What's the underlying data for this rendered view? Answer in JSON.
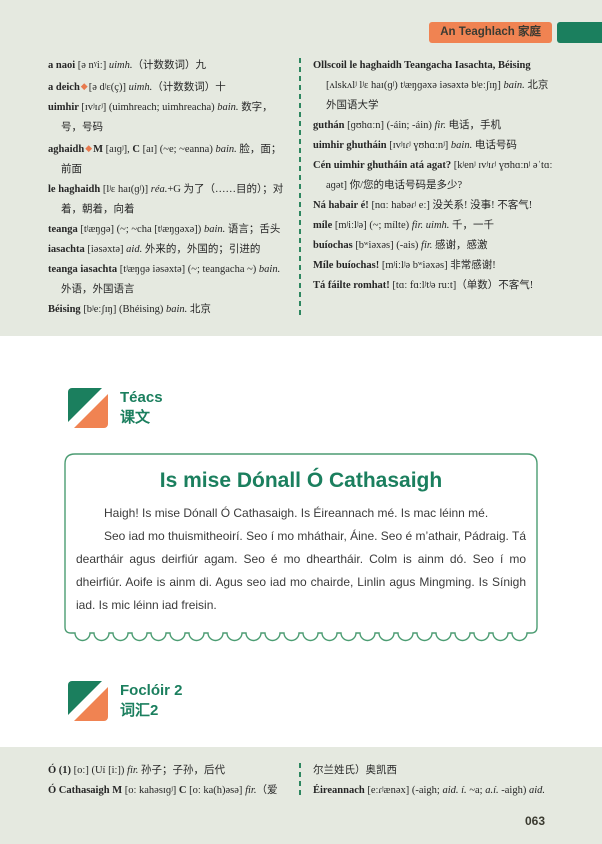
{
  "header": {
    "chapter_label": "An Teaghlach 家庭"
  },
  "colors": {
    "green": "#1b7f5e",
    "orange": "#f08352",
    "bg": "#e5e9e0",
    "boxborder": "#4b9c72",
    "diamond": "#e87a4e"
  },
  "sections": {
    "teacs": {
      "title_ga": "Téacs",
      "title_zh": "课文"
    },
    "focloir2": {
      "title_ga": "Foclóir 2",
      "title_zh": "词汇2"
    }
  },
  "textbox": {
    "title": "Is mise Dónall Ó Cathasaigh",
    "paragraphs": [
      "Haigh! Is mise Dónall Ó Cathasaigh. Is Éireannach mé. Is mac léinn mé.",
      "Seo iad mo thuismitheoirí. Seo í mo mháthair, Áine. Seo é m’athair, Pádraig. Tá deartháir agus deirfiúr agam. Seo é mo dheartháir. Colm is ainm dó. Seo í mo dheirfiúr. Aoife is ainm di. Agus seo iad mo chairde, Linlin agus Mingming. Is Sínigh iad. Is mic léinn iad freisin."
    ]
  },
  "vocab_top": {
    "left": [
      [
        {
          "t": "a naoi ",
          "s": "b"
        },
        {
          "t": "[ə nˠiː] ",
          "s": "n"
        },
        {
          "t": "uimh.",
          "s": "i"
        },
        {
          "t": "（计数数词）九",
          "s": "n"
        }
      ],
      [
        {
          "t": "a deich",
          "s": "b"
        },
        {
          "t": "◆",
          "s": "d"
        },
        {
          "t": "[ə dʲɛ(ç)] ",
          "s": "n"
        },
        {
          "t": "uimh.",
          "s": "i"
        },
        {
          "t": "（计数数词）十",
          "s": "n"
        }
      ],
      [
        {
          "t": "uimhir ",
          "s": "b"
        },
        {
          "t": "[ɪvʲɪɾʲ] (uimhreach; uimhreacha) ",
          "s": "n"
        },
        {
          "t": "bain.",
          "s": "i"
        },
        {
          "t": " 数字，号，号码",
          "s": "n"
        }
      ],
      [
        {
          "t": "aghaidh",
          "s": "b"
        },
        {
          "t": "◆",
          "s": "d"
        },
        {
          "t": "M",
          "s": "b"
        },
        {
          "t": " [aɪɡʲ], ",
          "s": "n"
        },
        {
          "t": "C",
          "s": "b"
        },
        {
          "t": " [aɪ] (~e; ~eanna) ",
          "s": "n"
        },
        {
          "t": "bain.",
          "s": "i"
        },
        {
          "t": " 脸，面；前面",
          "s": "n"
        }
      ],
      [
        {
          "t": "le haghaidh ",
          "s": "b"
        },
        {
          "t": "[lʲɛ haɪ(ɡʲ)] ",
          "s": "n"
        },
        {
          "t": "réa.",
          "s": "i"
        },
        {
          "t": "+G 为了（……目的）；对着，朝着，向着",
          "s": "n"
        }
      ],
      [
        {
          "t": "teanga ",
          "s": "b"
        },
        {
          "t": "[tʲæŋɡə] (~; ~cha [tʲæŋɡəxə]) ",
          "s": "n"
        },
        {
          "t": "bain.",
          "s": "i"
        },
        {
          "t": " 语言；舌头",
          "s": "n"
        }
      ],
      [
        {
          "t": "iasachta ",
          "s": "b"
        },
        {
          "t": "[iəsəxtə] ",
          "s": "n"
        },
        {
          "t": "aid.",
          "s": "i"
        },
        {
          "t": " 外来的，外国的；引进的",
          "s": "n"
        }
      ],
      [
        {
          "t": "teanga iasachta ",
          "s": "b"
        },
        {
          "t": "[tʲæŋɡə iəsəxtə] (~; teangacha ~) ",
          "s": "n"
        },
        {
          "t": "bain.",
          "s": "i"
        },
        {
          "t": " 外语，外国语言",
          "s": "n"
        }
      ],
      [
        {
          "t": "Béising ",
          "s": "b"
        },
        {
          "t": "[bʲeːʃɪŋ] (Bhéising) ",
          "s": "n"
        },
        {
          "t": "bain.",
          "s": "i"
        },
        {
          "t": " 北京",
          "s": "n"
        }
      ]
    ],
    "right": [
      [
        {
          "t": "Ollscoil le haghaidh Teangacha Iasachta, Béising ",
          "s": "b"
        },
        {
          "t": "[ʌlskʌlʲ lʲɛ haɪ(ɡʲ) tʲæŋɡəxə iəsəxtə bʲeːʃɪŋ] ",
          "s": "n"
        },
        {
          "t": "bain.",
          "s": "i"
        },
        {
          "t": " 北京外国语大学",
          "s": "n"
        }
      ],
      [
        {
          "t": "guthán ",
          "s": "b"
        },
        {
          "t": "[ɡʊhɑːn] (-áin; -áin) ",
          "s": "n"
        },
        {
          "t": "fir.",
          "s": "i"
        },
        {
          "t": " 电话，手机",
          "s": "n"
        }
      ],
      [
        {
          "t": "uimhir ghutháin ",
          "s": "b"
        },
        {
          "t": "[ɪvʲɪɾʲ ɣʊhɑːnʲ] ",
          "s": "n"
        },
        {
          "t": "bain.",
          "s": "i"
        },
        {
          "t": " 电话号码",
          "s": "n"
        }
      ],
      [
        {
          "t": "Cén uimhir ghutháin atá agat? ",
          "s": "b"
        },
        {
          "t": "[kʲenʲ ɪvʲɪɾʲ ɣʊhɑːnʲ əˈtɑː aɡət] 你/您的电话号码是多少?",
          "s": "n"
        }
      ],
      [
        {
          "t": "Ná habair é! ",
          "s": "b"
        },
        {
          "t": "[nɑː habəɾʲ eː] 没关系! 没事! 不客气!",
          "s": "n"
        }
      ],
      [
        {
          "t": "míle ",
          "s": "b"
        },
        {
          "t": "[mʲiːlʲə] (~; mílte) ",
          "s": "n"
        },
        {
          "t": "fir. uimh.",
          "s": "i"
        },
        {
          "t": " 千，一千",
          "s": "n"
        }
      ],
      [
        {
          "t": "buíochas ",
          "s": "b"
        },
        {
          "t": "[bʷiəxəs] (-ais) ",
          "s": "n"
        },
        {
          "t": "fir.",
          "s": "i"
        },
        {
          "t": " 感谢，感激",
          "s": "n"
        }
      ],
      [
        {
          "t": "Míle buíochas! ",
          "s": "b"
        },
        {
          "t": "[mʲiːlʲə bʷiəxəs] 非常感谢!",
          "s": "n"
        }
      ],
      [
        {
          "t": "Tá fáilte romhat! ",
          "s": "b"
        },
        {
          "t": "[tɑː fɑːlʲtʲə ruːt]（单数）不客气!",
          "s": "n"
        }
      ]
    ]
  },
  "vocab_bottom": {
    "left": [
      [
        {
          "t": "Ó (1) ",
          "s": "b"
        },
        {
          "t": "[oː] (Uí [iː]) ",
          "s": "n"
        },
        {
          "t": "fir.",
          "s": "i"
        },
        {
          "t": " 孙子；子孙，后代",
          "s": "n"
        }
      ],
      [
        {
          "t": "Ó Cathasaigh ",
          "s": "b"
        },
        {
          "t": "M",
          "s": "b"
        },
        {
          "t": " [oː kahəsɪɡʲ] ",
          "s": "n"
        },
        {
          "t": "C",
          "s": "b"
        },
        {
          "t": " [oː ka(h)əsə] ",
          "s": "n"
        },
        {
          "t": "fir.",
          "s": "i"
        },
        {
          "t": "（爱",
          "s": "n"
        }
      ]
    ],
    "right": [
      [
        {
          "t": "尔兰姓氏）奥凯西",
          "s": "n"
        }
      ],
      [
        {
          "t": "Éireannach ",
          "s": "b"
        },
        {
          "t": "[eːɾʲænəx] (-aigh; ",
          "s": "n"
        },
        {
          "t": "aid. í.",
          "s": "i"
        },
        {
          "t": " ~a; ",
          "s": "n"
        },
        {
          "t": "a.í.",
          "s": "i"
        },
        {
          "t": " -aigh) ",
          "s": "n"
        },
        {
          "t": "aid.",
          "s": "i"
        }
      ]
    ]
  },
  "page": {
    "number": "063"
  }
}
